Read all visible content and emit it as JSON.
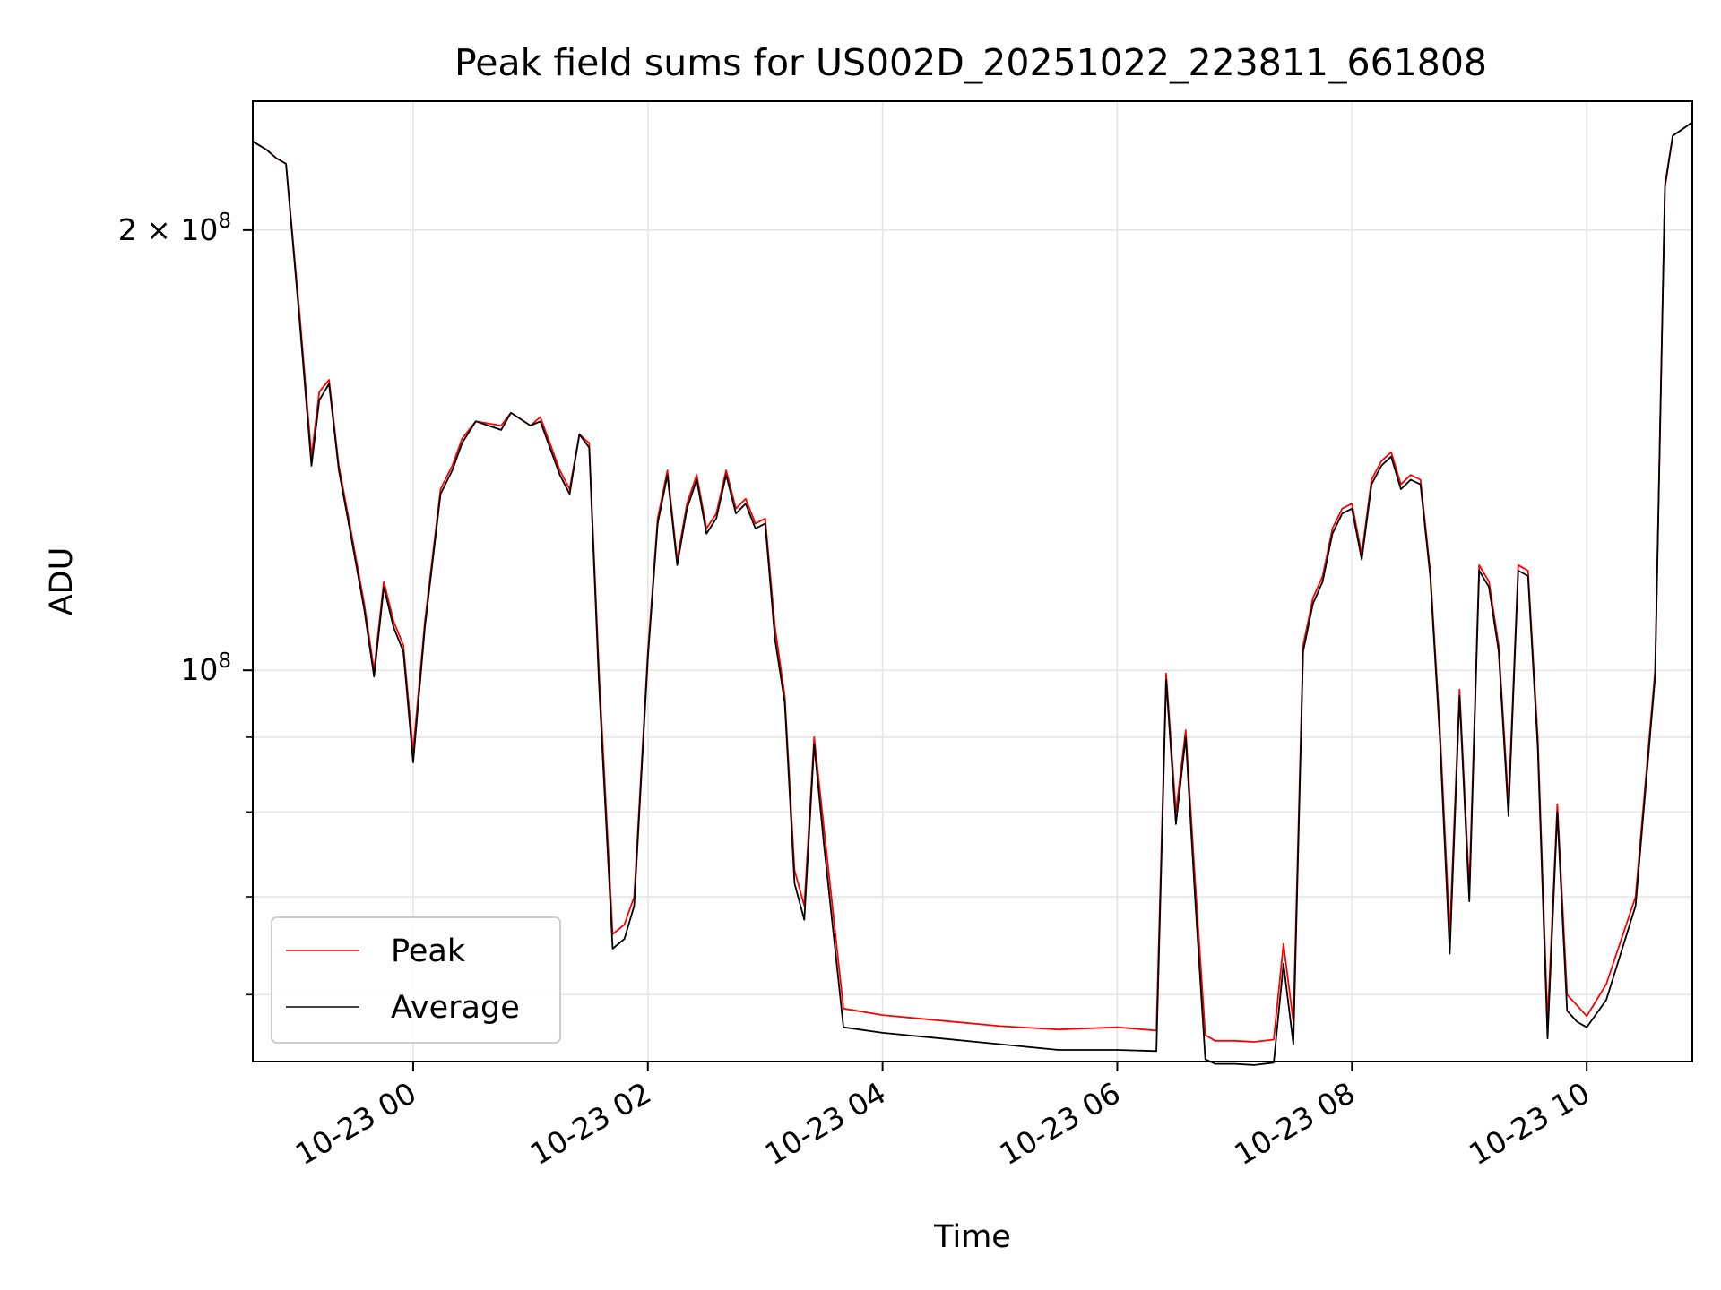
{
  "chart_data": {
    "type": "line",
    "title": "Peak field sums for US002D_20251022_223811_661808",
    "xlabel": "Time",
    "ylabel": "ADU",
    "yscale": "log",
    "ylim": [
      54000000,
      245000000
    ],
    "xlim": [
      "2025-10-22 22:38",
      "2025-10-23 10:54"
    ],
    "grid": true,
    "legend_position": "lower-left",
    "x_ticks": [
      {
        "value": "2025-10-23 00:00",
        "label": "10-23 00"
      },
      {
        "value": "2025-10-23 02:00",
        "label": "10-23 02"
      },
      {
        "value": "2025-10-23 04:00",
        "label": "10-23 04"
      },
      {
        "value": "2025-10-23 06:00",
        "label": "10-23 06"
      },
      {
        "value": "2025-10-23 08:00",
        "label": "10-23 08"
      },
      {
        "value": "2025-10-23 10:00",
        "label": "10-23 10"
      }
    ],
    "y_major_ticks": [
      {
        "value": 100000000,
        "label_base": "10",
        "label_exp": "8"
      },
      {
        "value": 200000000,
        "label_base": "2 × 10",
        "label_exp": "8"
      }
    ],
    "y_minor_ticks": [
      60000000,
      70000000,
      80000000,
      90000000
    ],
    "series": [
      {
        "name": "Peak",
        "color": "#ff0000",
        "x": [
          "2025-10-22 22:38",
          "2025-10-22 22:45",
          "2025-10-22 22:50",
          "2025-10-22 22:55",
          "2025-10-22 23:02",
          "2025-10-22 23:08",
          "2025-10-22 23:12",
          "2025-10-22 23:17",
          "2025-10-22 23:22",
          "2025-10-22 23:28",
          "2025-10-22 23:35",
          "2025-10-22 23:40",
          "2025-10-22 23:45",
          "2025-10-22 23:50",
          "2025-10-22 23:55",
          "2025-10-23 00:00",
          "2025-10-23 00:06",
          "2025-10-23 00:14",
          "2025-10-23 00:20",
          "2025-10-23 00:25",
          "2025-10-23 00:32",
          "2025-10-23 00:45",
          "2025-10-23 00:50",
          "2025-10-23 01:00",
          "2025-10-23 01:05",
          "2025-10-23 01:15",
          "2025-10-23 01:20",
          "2025-10-23 01:25",
          "2025-10-23 01:30",
          "2025-10-23 01:35",
          "2025-10-23 01:42",
          "2025-10-23 01:48",
          "2025-10-23 01:53",
          "2025-10-23 02:00",
          "2025-10-23 02:05",
          "2025-10-23 02:10",
          "2025-10-23 02:15",
          "2025-10-23 02:20",
          "2025-10-23 02:25",
          "2025-10-23 02:30",
          "2025-10-23 02:35",
          "2025-10-23 02:40",
          "2025-10-23 02:45",
          "2025-10-23 02:50",
          "2025-10-23 02:55",
          "2025-10-23 03:00",
          "2025-10-23 03:05",
          "2025-10-23 03:10",
          "2025-10-23 03:15",
          "2025-10-23 03:20",
          "2025-10-23 03:25",
          "2025-10-23 03:30",
          "2025-10-23 03:40",
          "2025-10-23 04:00",
          "2025-10-23 04:30",
          "2025-10-23 05:00",
          "2025-10-23 05:30",
          "2025-10-23 06:00",
          "2025-10-23 06:20",
          "2025-10-23 06:25",
          "2025-10-23 06:30",
          "2025-10-23 06:35",
          "2025-10-23 06:40",
          "2025-10-23 06:45",
          "2025-10-23 06:50",
          "2025-10-23 07:00",
          "2025-10-23 07:10",
          "2025-10-23 07:20",
          "2025-10-23 07:25",
          "2025-10-23 07:30",
          "2025-10-23 07:35",
          "2025-10-23 07:40",
          "2025-10-23 07:45",
          "2025-10-23 07:50",
          "2025-10-23 07:55",
          "2025-10-23 08:00",
          "2025-10-23 08:05",
          "2025-10-23 08:10",
          "2025-10-23 08:15",
          "2025-10-23 08:20",
          "2025-10-23 08:25",
          "2025-10-23 08:30",
          "2025-10-23 08:35",
          "2025-10-23 08:40",
          "2025-10-23 08:45",
          "2025-10-23 08:50",
          "2025-10-23 08:55",
          "2025-10-23 09:00",
          "2025-10-23 09:05",
          "2025-10-23 09:10",
          "2025-10-23 09:15",
          "2025-10-23 09:20",
          "2025-10-23 09:25",
          "2025-10-23 09:30",
          "2025-10-23 09:35",
          "2025-10-23 09:40",
          "2025-10-23 09:45",
          "2025-10-23 09:50",
          "2025-10-23 09:55",
          "2025-10-23 10:00",
          "2025-10-23 10:10",
          "2025-10-23 10:25",
          "2025-10-23 10:35",
          "2025-10-23 10:40",
          "2025-10-23 10:44",
          "2025-10-23 10:54"
        ],
        "y": [
          230000000,
          227000000,
          224000000,
          222000000,
          175000000,
          140000000,
          155000000,
          158000000,
          138000000,
          125000000,
          111000000,
          100000000,
          115000000,
          108000000,
          104000000,
          88000000,
          108000000,
          133000000,
          138000000,
          144000000,
          148000000,
          147000000,
          150000000,
          147000000,
          149000000,
          137000000,
          133000000,
          145000000,
          143000000,
          100000000,
          66000000,
          67000000,
          70000000,
          103000000,
          127000000,
          137000000,
          119000000,
          130000000,
          136000000,
          125000000,
          128000000,
          137000000,
          129000000,
          131000000,
          126000000,
          127000000,
          107000000,
          96000000,
          73000000,
          69000000,
          90000000,
          78000000,
          58700000,
          58100000,
          57600000,
          57100000,
          56800000,
          57000000,
          56700000,
          99500000,
          80000000,
          91000000,
          71000000,
          56300000,
          55800000,
          55800000,
          55700000,
          55900000,
          65000000,
          57500000,
          104000000,
          112000000,
          116000000,
          125000000,
          129000000,
          130000000,
          120000000,
          135000000,
          139000000,
          141000000,
          134000000,
          136000000,
          135000000,
          117000000,
          91000000,
          66000000,
          97000000,
          71000000,
          118000000,
          115000000,
          104000000,
          81000000,
          118000000,
          117000000,
          90000000,
          57500000,
          81000000,
          60000000,
          59000000,
          58000000,
          61000000,
          70000000,
          100000000,
          215000000,
          232000000,
          237000000
        ]
      },
      {
        "name": "Average",
        "color": "#000000",
        "x": [
          "2025-10-22 22:38",
          "2025-10-22 22:45",
          "2025-10-22 22:50",
          "2025-10-22 22:55",
          "2025-10-22 23:02",
          "2025-10-22 23:08",
          "2025-10-22 23:12",
          "2025-10-22 23:17",
          "2025-10-22 23:22",
          "2025-10-22 23:28",
          "2025-10-22 23:35",
          "2025-10-22 23:40",
          "2025-10-22 23:45",
          "2025-10-22 23:50",
          "2025-10-22 23:55",
          "2025-10-23 00:00",
          "2025-10-23 00:06",
          "2025-10-23 00:14",
          "2025-10-23 00:20",
          "2025-10-23 00:25",
          "2025-10-23 00:32",
          "2025-10-23 00:45",
          "2025-10-23 00:50",
          "2025-10-23 01:00",
          "2025-10-23 01:05",
          "2025-10-23 01:15",
          "2025-10-23 01:20",
          "2025-10-23 01:25",
          "2025-10-23 01:30",
          "2025-10-23 01:35",
          "2025-10-23 01:42",
          "2025-10-23 01:48",
          "2025-10-23 01:53",
          "2025-10-23 02:00",
          "2025-10-23 02:05",
          "2025-10-23 02:10",
          "2025-10-23 02:15",
          "2025-10-23 02:20",
          "2025-10-23 02:25",
          "2025-10-23 02:30",
          "2025-10-23 02:35",
          "2025-10-23 02:40",
          "2025-10-23 02:45",
          "2025-10-23 02:50",
          "2025-10-23 02:55",
          "2025-10-23 03:00",
          "2025-10-23 03:05",
          "2025-10-23 03:10",
          "2025-10-23 03:15",
          "2025-10-23 03:20",
          "2025-10-23 03:25",
          "2025-10-23 03:30",
          "2025-10-23 03:40",
          "2025-10-23 04:00",
          "2025-10-23 04:30",
          "2025-10-23 05:00",
          "2025-10-23 05:30",
          "2025-10-23 06:00",
          "2025-10-23 06:20",
          "2025-10-23 06:25",
          "2025-10-23 06:30",
          "2025-10-23 06:35",
          "2025-10-23 06:40",
          "2025-10-23 06:45",
          "2025-10-23 06:50",
          "2025-10-23 07:00",
          "2025-10-23 07:10",
          "2025-10-23 07:20",
          "2025-10-23 07:25",
          "2025-10-23 07:30",
          "2025-10-23 07:35",
          "2025-10-23 07:40",
          "2025-10-23 07:45",
          "2025-10-23 07:50",
          "2025-10-23 07:55",
          "2025-10-23 08:00",
          "2025-10-23 08:05",
          "2025-10-23 08:10",
          "2025-10-23 08:15",
          "2025-10-23 08:20",
          "2025-10-23 08:25",
          "2025-10-23 08:30",
          "2025-10-23 08:35",
          "2025-10-23 08:40",
          "2025-10-23 08:45",
          "2025-10-23 08:50",
          "2025-10-23 08:55",
          "2025-10-23 09:00",
          "2025-10-23 09:05",
          "2025-10-23 09:10",
          "2025-10-23 09:15",
          "2025-10-23 09:20",
          "2025-10-23 09:25",
          "2025-10-23 09:30",
          "2025-10-23 09:35",
          "2025-10-23 09:40",
          "2025-10-23 09:45",
          "2025-10-23 09:50",
          "2025-10-23 09:55",
          "2025-10-23 10:00",
          "2025-10-23 10:10",
          "2025-10-23 10:25",
          "2025-10-23 10:35",
          "2025-10-23 10:40",
          "2025-10-23 10:44",
          "2025-10-23 10:54"
        ],
        "y": [
          230000000,
          227000000,
          224000000,
          222000000,
          173000000,
          138000000,
          153000000,
          157000000,
          137000000,
          124000000,
          110000000,
          99000000,
          114000000,
          107000000,
          103000000,
          86500000,
          107000000,
          132000000,
          137000000,
          143000000,
          148000000,
          146000000,
          150000000,
          147000000,
          148000000,
          136000000,
          132000000,
          145000000,
          142000000,
          98000000,
          64500000,
          65500000,
          69000000,
          102000000,
          126000000,
          136000000,
          118000000,
          129000000,
          135000000,
          124000000,
          127000000,
          136000000,
          128000000,
          130000000,
          125000000,
          126000000,
          105000000,
          95000000,
          71500000,
          67500000,
          89000000,
          76000000,
          57000000,
          56500000,
          56000000,
          55500000,
          55000000,
          55000000,
          54900000,
          98500000,
          78500000,
          90000000,
          69000000,
          54200000,
          53800000,
          53800000,
          53700000,
          53900000,
          63000000,
          55500000,
          103000000,
          111000000,
          115000000,
          124000000,
          128000000,
          129000000,
          119000000,
          134000000,
          138000000,
          140000000,
          133000000,
          135000000,
          134000000,
          116000000,
          89500000,
          64000000,
          96000000,
          69500000,
          117000000,
          114000000,
          103000000,
          79500000,
          117000000,
          116000000,
          88500000,
          56000000,
          80000000,
          58500000,
          57500000,
          57000000,
          59500000,
          69000000,
          99000000,
          214000000,
          232000000,
          237000000
        ]
      }
    ]
  }
}
